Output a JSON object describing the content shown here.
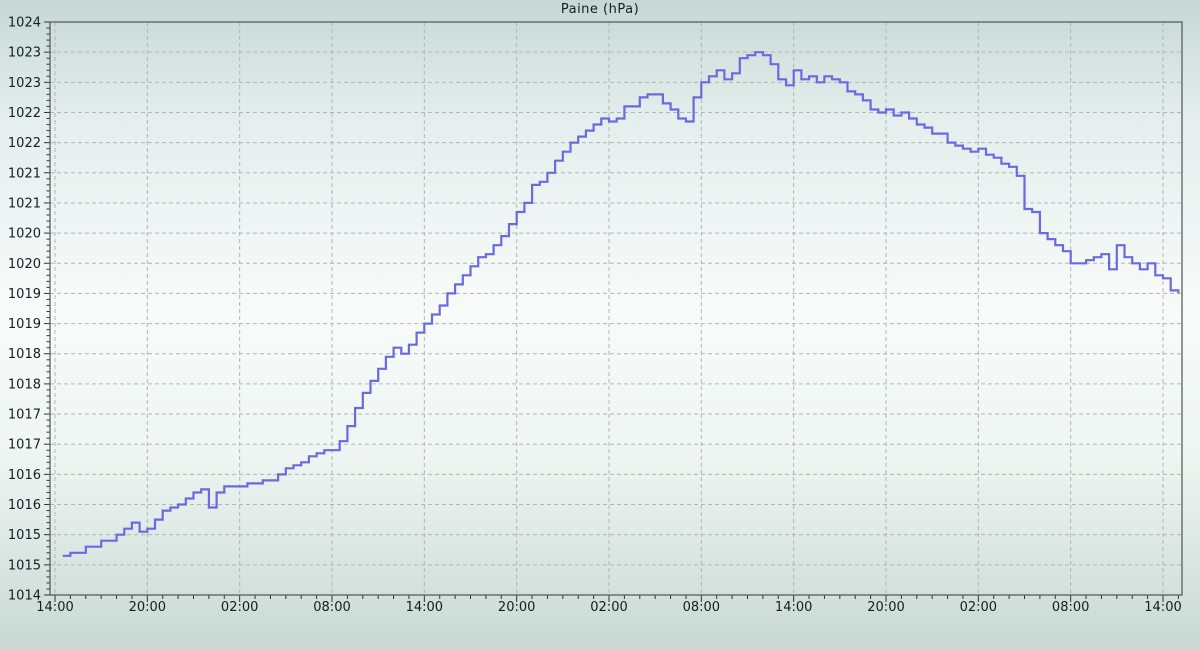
{
  "title": "Paine (hPa)",
  "colors": {
    "line": "#6a6ae0",
    "grid": "#b0b6b6",
    "border": "#4f5552",
    "tick": "#333333",
    "text": "#10201f",
    "bg_top": "#c7d7d5",
    "bg_mid": "#f8fbfa",
    "bg_bottom": "#c9d8d3"
  },
  "chart_data": {
    "type": "line",
    "title": "Paine (hPa)",
    "xlabel": "",
    "ylabel": "",
    "grid": "dashed",
    "legend": "none",
    "line_style": "step-after",
    "ylim": [
      1014.5,
      1024.0
    ],
    "y_major_step_hpa": 0.5,
    "y_minor_step_hpa": 0.1,
    "y_tick_labels_top_to_bottom": [
      "1024",
      "1023",
      "1023",
      "1022",
      "1022",
      "1021",
      "1021",
      "1020",
      "1020",
      "1019",
      "1019",
      "1018",
      "1018",
      "1017",
      "1017",
      "1016",
      "1016",
      "1015",
      "1015",
      "1014"
    ],
    "xlim_hours": [
      -0.35,
      73.3
    ],
    "x_major_step_hours": 6,
    "x_minor_step_hours": 1,
    "x_tick_hours": [
      0,
      6,
      12,
      18,
      24,
      30,
      36,
      42,
      48,
      54,
      60,
      66,
      72
    ],
    "x_tick_labels": [
      "14:00",
      "20:00",
      "02:00",
      "08:00",
      "14:00",
      "20:00",
      "02:00",
      "08:00",
      "14:00",
      "20:00",
      "02:00",
      "08:00",
      "14:00"
    ],
    "series": [
      {
        "name": "Paine",
        "unit": "hPa",
        "start_hour": 0.5,
        "step_hours": 0.5,
        "values": [
          1015.15,
          1015.2,
          1015.2,
          1015.3,
          1015.3,
          1015.4,
          1015.4,
          1015.5,
          1015.6,
          1015.7,
          1015.55,
          1015.6,
          1015.75,
          1015.9,
          1015.95,
          1016.0,
          1016.1,
          1016.2,
          1016.25,
          1015.95,
          1016.2,
          1016.3,
          1016.3,
          1016.3,
          1016.35,
          1016.35,
          1016.4,
          1016.4,
          1016.5,
          1016.6,
          1016.65,
          1016.7,
          1016.8,
          1016.85,
          1016.9,
          1016.9,
          1017.05,
          1017.3,
          1017.6,
          1017.85,
          1018.05,
          1018.25,
          1018.45,
          1018.6,
          1018.5,
          1018.65,
          1018.85,
          1019.0,
          1019.15,
          1019.3,
          1019.5,
          1019.65,
          1019.8,
          1019.95,
          1020.1,
          1020.15,
          1020.3,
          1020.45,
          1020.65,
          1020.85,
          1021.0,
          1021.3,
          1021.35,
          1021.5,
          1021.7,
          1021.85,
          1022.0,
          1022.1,
          1022.2,
          1022.3,
          1022.4,
          1022.35,
          1022.4,
          1022.6,
          1022.6,
          1022.75,
          1022.8,
          1022.8,
          1022.65,
          1022.55,
          1022.4,
          1022.35,
          1022.75,
          1023.0,
          1023.1,
          1023.2,
          1023.05,
          1023.15,
          1023.4,
          1023.45,
          1023.5,
          1023.45,
          1023.3,
          1023.05,
          1022.95,
          1023.2,
          1023.05,
          1023.1,
          1023.0,
          1023.1,
          1023.05,
          1023.0,
          1022.85,
          1022.8,
          1022.7,
          1022.55,
          1022.5,
          1022.55,
          1022.45,
          1022.5,
          1022.4,
          1022.3,
          1022.25,
          1022.15,
          1022.15,
          1022.0,
          1021.95,
          1021.9,
          1021.85,
          1021.9,
          1021.8,
          1021.75,
          1021.65,
          1021.6,
          1021.45,
          1020.9,
          1020.85,
          1020.5,
          1020.4,
          1020.3,
          1020.2,
          1020.0,
          1020.0,
          1020.05,
          1020.1,
          1020.15,
          1019.9,
          1020.3,
          1020.1,
          1020.0,
          1019.9,
          1020.0,
          1019.8,
          1019.75,
          1019.55,
          1019.5
        ]
      }
    ]
  }
}
